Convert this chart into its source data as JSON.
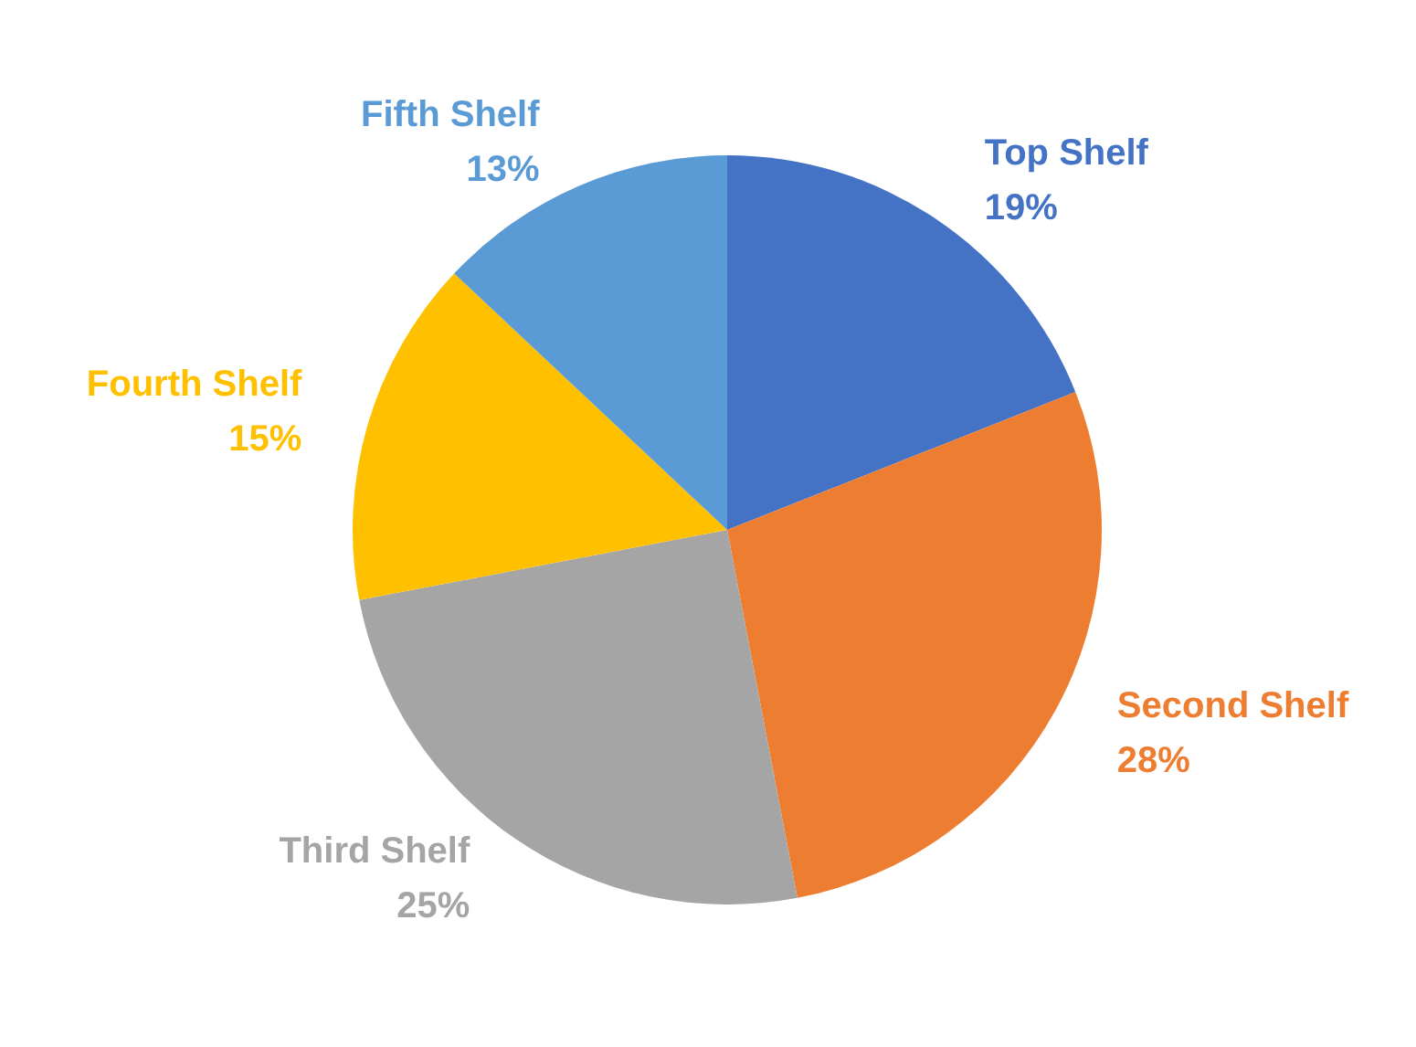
{
  "chart_data": {
    "type": "pie",
    "categories": [
      "Top Shelf",
      "Second Shelf",
      "Third Shelf",
      "Fourth Shelf",
      "Fifth Shelf"
    ],
    "values": [
      19,
      28,
      25,
      15,
      13
    ],
    "colors": [
      "#4472c4",
      "#ed7d31",
      "#a5a5a5",
      "#ffc000",
      "#5b9bd5"
    ],
    "value_labels": [
      "19%",
      "28%",
      "25%",
      "15%",
      "13%"
    ]
  }
}
